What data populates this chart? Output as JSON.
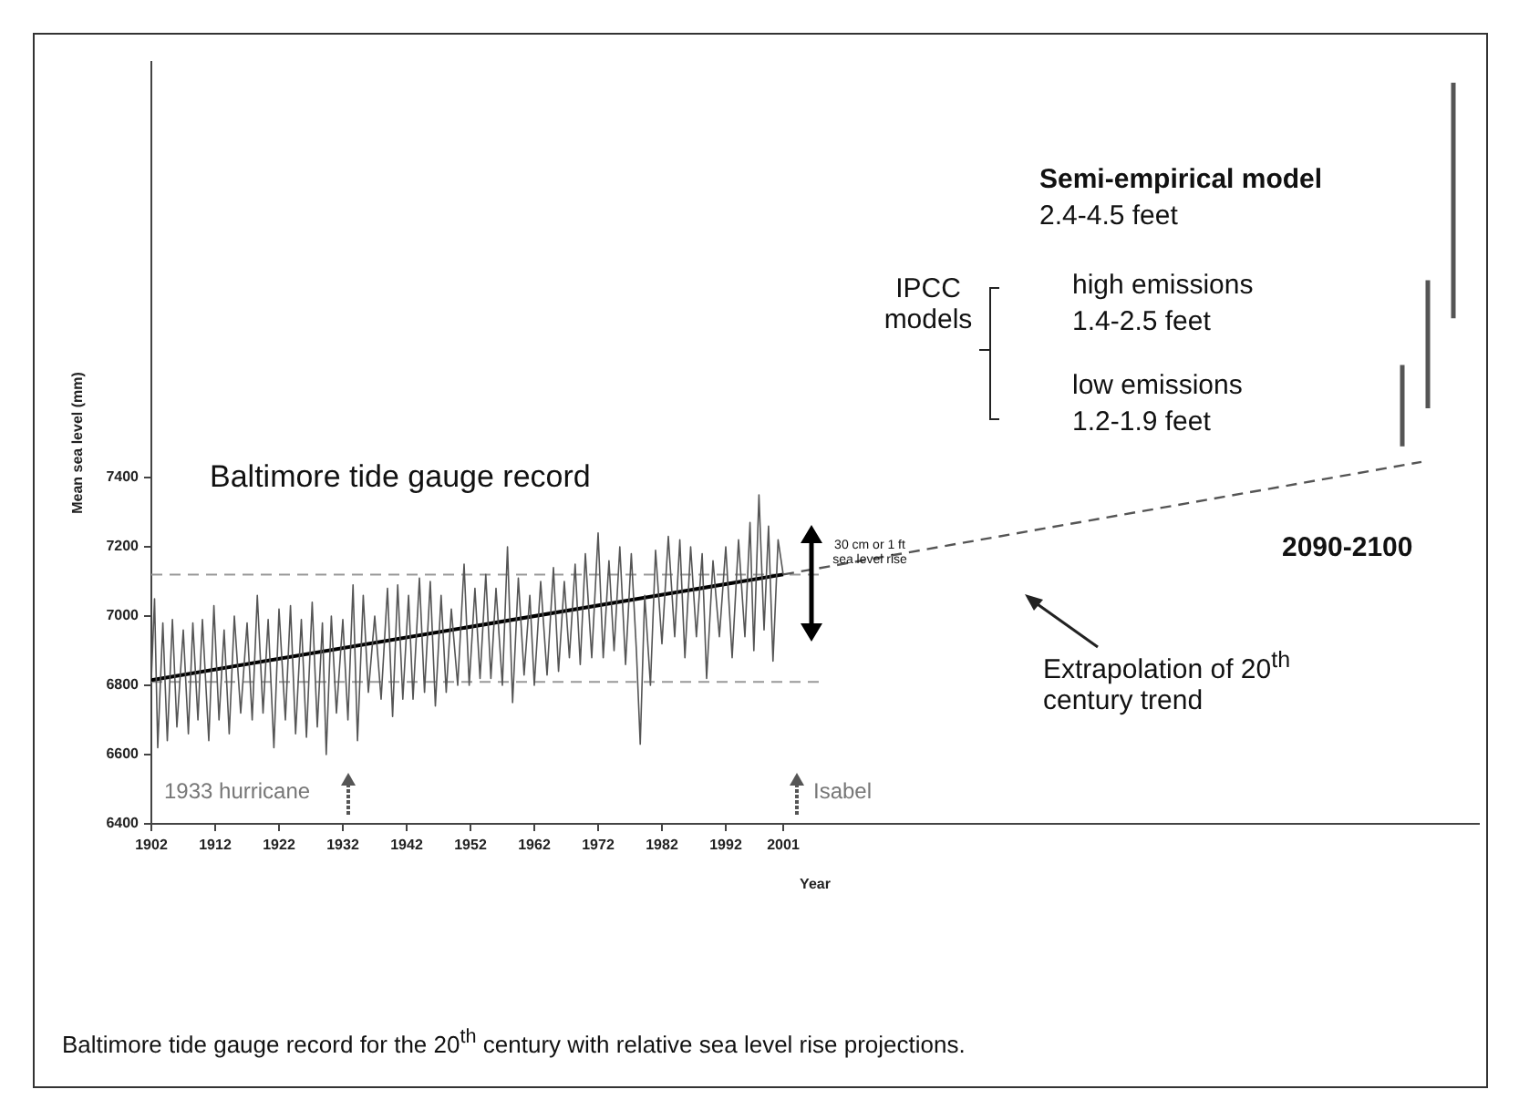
{
  "chart_data": {
    "type": "line",
    "title": "Baltimore tide gauge record",
    "xlabel": "Year",
    "ylabel": "Mean sea level (mm)",
    "xlim": [
      1902,
      2110
    ],
    "ylim": [
      6400,
      8600
    ],
    "xticks": [
      1902,
      1912,
      1922,
      1932,
      1942,
      1952,
      1962,
      1972,
      1982,
      1992,
      2001
    ],
    "yticks": [
      6400,
      6600,
      6800,
      7000,
      7200,
      7400
    ],
    "series": [
      {
        "color": "#555555",
        "x": [
          1902,
          1902.5,
          1903,
          1903.8,
          1904.5,
          1905.3,
          1906,
          1907,
          1907.8,
          1908.5,
          1909.3,
          1910,
          1911,
          1911.8,
          1912.6,
          1913.4,
          1914.2,
          1915,
          1916,
          1917,
          1917.8,
          1918.6,
          1919.5,
          1920.3,
          1921.2,
          1922,
          1923,
          1923.8,
          1924.6,
          1925.5,
          1926.3,
          1927.2,
          1928,
          1928.8,
          1929.4,
          1930.2,
          1931,
          1932,
          1932.8,
          1933.6,
          1934.3,
          1935.2,
          1936,
          1937,
          1938,
          1939,
          1939.8,
          1940.6,
          1941.4,
          1942.3,
          1943,
          1944,
          1944.8,
          1945.7,
          1946.5,
          1947.4,
          1948.2,
          1949,
          1950,
          1951,
          1951.8,
          1952.7,
          1953.5,
          1954.4,
          1955.2,
          1956,
          1957,
          1957.8,
          1958.6,
          1959.5,
          1960.4,
          1961.3,
          1962,
          1963,
          1964,
          1965,
          1965.8,
          1966.7,
          1967.5,
          1968.4,
          1969.2,
          1970,
          1971,
          1972,
          1972.8,
          1973.7,
          1974.5,
          1975.4,
          1976.3,
          1977.2,
          1978,
          1978.6,
          1979.3,
          1980.2,
          1981,
          1982,
          1983,
          1984,
          1984.8,
          1985.6,
          1986.5,
          1987.4,
          1988.3,
          1989,
          1990,
          1991,
          1992,
          1993,
          1994,
          1995,
          1995.8,
          1996.4,
          1997.2,
          1998,
          1998.7,
          1999.4,
          2000.2,
          2001
        ],
        "values": [
          6820,
          7050,
          6620,
          6980,
          6640,
          6990,
          6680,
          6960,
          6660,
          6980,
          6700,
          6990,
          6640,
          7030,
          6700,
          6960,
          6660,
          7000,
          6720,
          6980,
          6700,
          7060,
          6720,
          6990,
          6620,
          7020,
          6700,
          7030,
          6660,
          6990,
          6650,
          7040,
          6680,
          6980,
          6600,
          7000,
          6720,
          6990,
          6700,
          7090,
          6640,
          7060,
          6780,
          7000,
          6760,
          7080,
          6710,
          7090,
          6760,
          7060,
          6760,
          7110,
          6780,
          7100,
          6740,
          7060,
          6780,
          7020,
          6800,
          7150,
          6800,
          7080,
          6820,
          7120,
          6820,
          7080,
          6800,
          7200,
          6750,
          7110,
          6830,
          7060,
          6800,
          7100,
          6830,
          7140,
          6840,
          7100,
          6880,
          7150,
          6860,
          7180,
          6880,
          7240,
          6880,
          7160,
          6900,
          7200,
          6860,
          7180,
          6900,
          6630,
          7060,
          6800,
          7190,
          6920,
          7230,
          6940,
          7220,
          6880,
          7200,
          6940,
          7180,
          6820,
          7160,
          6940,
          7200,
          6880,
          7220,
          6940,
          7270,
          6900,
          7350,
          6960,
          7260,
          6870,
          7220,
          7120
        ]
      },
      {
        "color": "#000000",
        "x": [
          1902,
          2001
        ],
        "values": [
          6815,
          7120
        ]
      },
      {
        "color": "#555555",
        "line_style": "dashed",
        "x": [
          2001,
          2101
        ],
        "values": [
          7120,
          7445
        ]
      },
      {
        "color": "#555555",
        "x": [
          2098,
          2098
        ],
        "values": [
          7490,
          7725
        ]
      },
      {
        "color": "#555555",
        "x": [
          2102,
          2102
        ],
        "values": [
          7600,
          7970
        ]
      },
      {
        "color": "#555555",
        "x": [
          2106,
          2106
        ],
        "values": [
          7860,
          8540
        ]
      }
    ],
    "ref_lines": [
      {
        "axis": "y",
        "value": 7120,
        "color": "#999999",
        "line_style": "dashed"
      },
      {
        "axis": "y",
        "value": 6810,
        "color": "#999999",
        "line_style": "dashed"
      }
    ],
    "annotations": [
      "Semi-empirical model",
      "2.4-4.5 feet",
      "IPCC models",
      "high emissions",
      "1.4-2.5 feet",
      "low emissions",
      "1.2-1.9 feet",
      "2090-2100",
      "Extrapolation of 20$^{th}$ century  trend",
      "30 cm or 1 ft sea level rise",
      "1933 hurricane",
      "Isabel",
      "Baltimore tide gauge record for the 20$^{th}$ century with relative sea level rise projections."
    ]
  }
}
